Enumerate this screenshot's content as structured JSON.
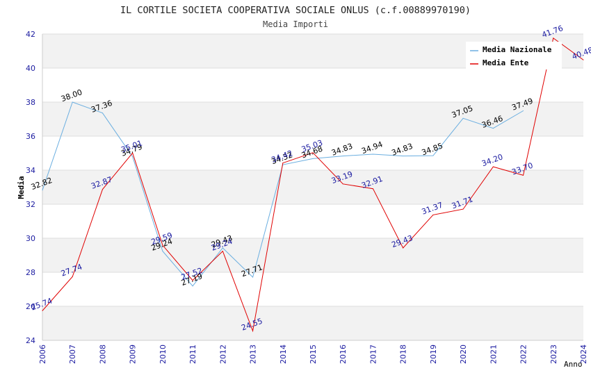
{
  "chart_data": {
    "type": "line",
    "title": "IL CORTILE SOCIETA COOPERATIVA SOCIALE ONLUS (c.f.00889970190)",
    "subtitle": "Media Importi",
    "xlabel": "Anno",
    "ylabel": "Media",
    "ylim": [
      24,
      42
    ],
    "yticks": [
      "24",
      "26",
      "28",
      "30",
      "32",
      "34",
      "36",
      "38",
      "40",
      "42"
    ],
    "x": [
      "2006",
      "2007",
      "2008",
      "2009",
      "2010",
      "2011",
      "2012",
      "2013",
      "2014",
      "2015",
      "2016",
      "2017",
      "2018",
      "2019",
      "2020",
      "2021",
      "2022",
      "2023",
      "2024"
    ],
    "legend_position": "top-right",
    "series": [
      {
        "name": "Media Nazionale",
        "color": "#6aaee0",
        "label_color": "#000000",
        "values": [
          32.82,
          38.0,
          37.36,
          34.79,
          29.24,
          27.19,
          29.43,
          27.71,
          34.32,
          34.68,
          34.83,
          34.94,
          34.83,
          34.85,
          37.05,
          36.46,
          37.49,
          null,
          null
        ],
        "labels": [
          "32.82",
          "38.00",
          "37.36",
          "34.79",
          "29.24",
          "27.19",
          "29.43",
          "27.71",
          "34.32",
          "34.68",
          "34.83",
          "34.94",
          "34.83",
          "34.85",
          "37.05",
          "36.46",
          "37.49",
          null,
          null
        ]
      },
      {
        "name": "Media Ente",
        "color": "#e00000",
        "label_color": "#1a1aa0",
        "values": [
          25.74,
          27.74,
          32.87,
          35.01,
          29.59,
          27.52,
          29.24,
          24.55,
          34.42,
          35.03,
          33.19,
          32.91,
          29.43,
          31.37,
          31.71,
          34.2,
          33.7,
          41.76,
          40.48
        ],
        "labels": [
          "25.74",
          "27.74",
          "32.87",
          "35.01",
          "29.59",
          "27.52",
          "29.24",
          "24.55",
          "34.42",
          "35.03",
          "33.19",
          "32.91",
          "29.43",
          "31.37",
          "31.71",
          "34.20",
          "33.70",
          "41.76",
          "40.48"
        ]
      }
    ],
    "colors": {
      "grid_band": "#f2f2f2",
      "grid_line": "#dddddd",
      "axis_tick_text": "#1a1aa0",
      "title_text": "#222222"
    }
  }
}
